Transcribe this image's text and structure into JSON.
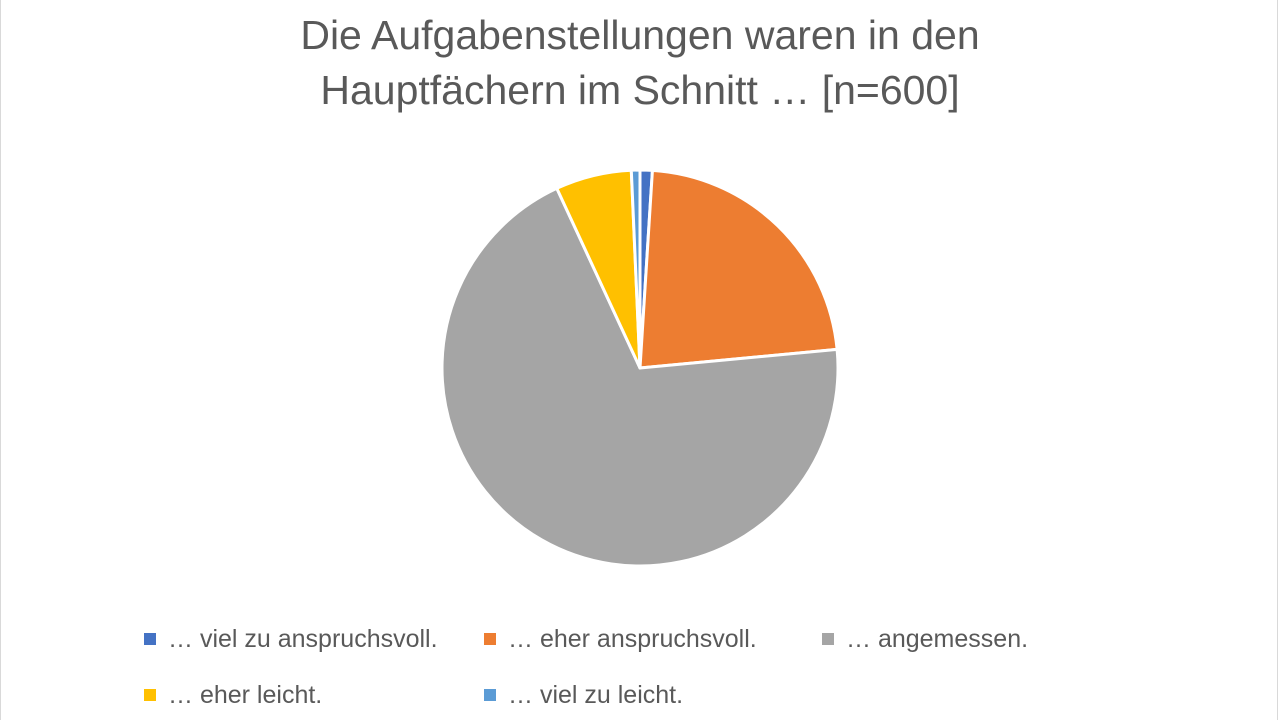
{
  "chart_data": {
    "type": "pie",
    "title_lines": [
      "Die Aufgabenstellungen waren in den",
      "Hauptfächern im Schnitt … [n=600]"
    ],
    "categories": [
      "… viel zu anspruchsvoll.",
      "… eher anspruchsvoll.",
      "… angemessen.",
      "… eher leicht.",
      "… viel zu leicht."
    ],
    "values": [
      1.0,
      22.5,
      69.6,
      6.2,
      0.7
    ],
    "unit": "percent",
    "colors": [
      "#4472C4",
      "#ED7D31",
      "#A5A5A5",
      "#FFC000",
      "#5B9BD5"
    ],
    "legend_position": "bottom"
  }
}
